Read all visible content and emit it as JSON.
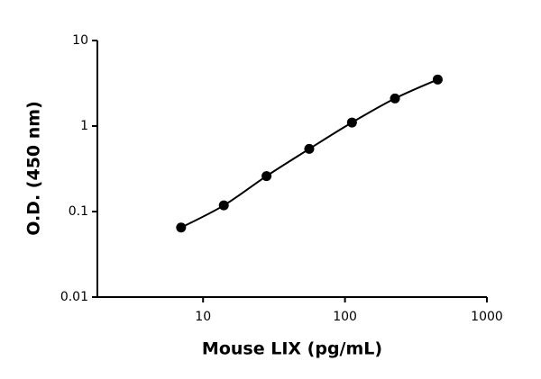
{
  "chart_data": {
    "type": "scatter",
    "x_label": "Mouse LIX (pg/mL)",
    "y_label": "O.D. (450 nm)",
    "x": [
      7,
      14,
      28,
      56,
      112,
      225,
      450
    ],
    "values": [
      0.065,
      0.118,
      0.26,
      0.54,
      1.1,
      2.1,
      3.5
    ],
    "color": "#000000",
    "xscale": "log",
    "yscale": "log",
    "xlim": [
      1.8,
      1000
    ],
    "ylim": [
      0.01,
      10
    ],
    "xticks": [
      10,
      100,
      1000
    ],
    "yticks": [
      0.01,
      0.1,
      1,
      10
    ],
    "grid": false,
    "fit_line": true
  }
}
